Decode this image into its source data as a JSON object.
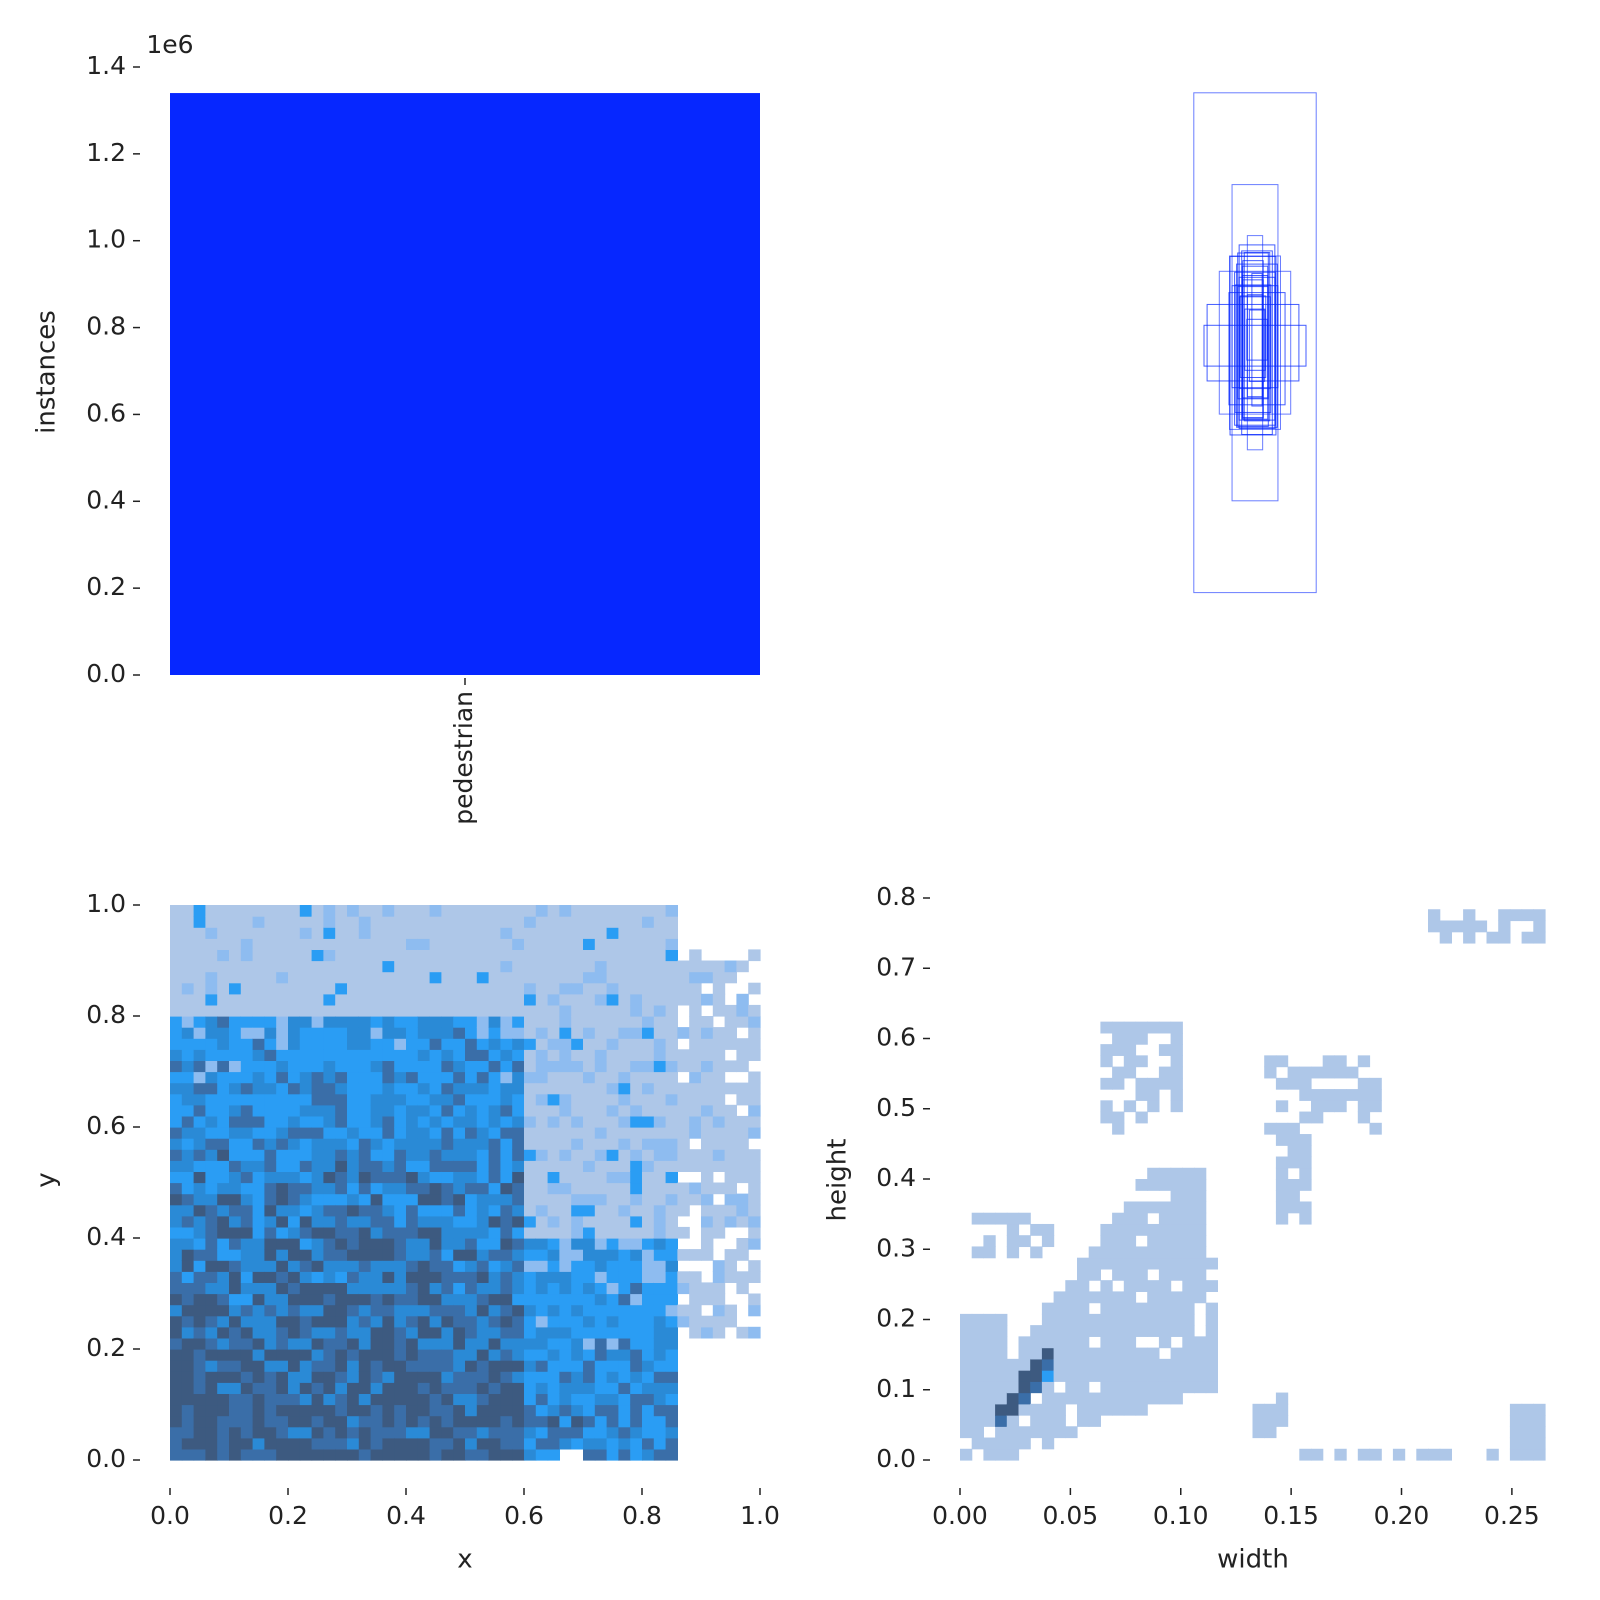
{
  "chart_data": [
    {
      "type": "bar",
      "panel": "top-left",
      "categories": [
        "pedestrian"
      ],
      "values": [
        1340000
      ],
      "ylabel": "instances",
      "xlabel": "",
      "ylim": [
        0,
        1400000
      ],
      "yticks": [
        0,
        200000,
        400000,
        600000,
        800000,
        1000000,
        1200000,
        1400000
      ],
      "ytick_labels": [
        "0.0",
        "0.2",
        "0.4",
        "0.6",
        "0.8",
        "1.0",
        "1.2",
        "1.4"
      ],
      "offset_text": "1e6",
      "bar_color": "#0627ff",
      "grid": false
    },
    {
      "type": "box_overlay",
      "panel": "top-right",
      "description_free": true,
      "center": [
        0.5,
        0.5
      ],
      "boxes_wh": [
        [
          0.24,
          0.98
        ],
        [
          0.09,
          0.62
        ],
        [
          0.14,
          0.28
        ],
        [
          0.1,
          0.34
        ],
        [
          0.03,
          0.42
        ],
        [
          0.07,
          0.36
        ],
        [
          0.06,
          0.34
        ],
        [
          0.05,
          0.3
        ],
        [
          0.08,
          0.32
        ],
        [
          0.04,
          0.27
        ],
        [
          0.05,
          0.24
        ],
        [
          0.02,
          0.26
        ],
        [
          0.06,
          0.22
        ],
        [
          0.03,
          0.2
        ],
        [
          0.07,
          0.28
        ],
        [
          0.05,
          0.16
        ],
        [
          0.04,
          0.12
        ],
        [
          0.06,
          0.36
        ],
        [
          0.09,
          0.35
        ],
        [
          0.08,
          0.3
        ],
        [
          0.05,
          0.33
        ],
        [
          0.04,
          0.31
        ],
        [
          0.06,
          0.18
        ],
        [
          0.03,
          0.14
        ],
        [
          0.07,
          0.25
        ],
        [
          0.09,
          0.2
        ],
        [
          0.04,
          0.08
        ],
        [
          0.18,
          0.15
        ],
        [
          0.2,
          0.08
        ],
        [
          0.11,
          0.22
        ]
      ],
      "box_color": "#0627ff",
      "axes_visible": false
    },
    {
      "type": "heatmap",
      "panel": "bottom-left",
      "xlabel": "x",
      "ylabel": "y",
      "xlim": [
        0,
        1
      ],
      "ylim": [
        0,
        1
      ],
      "xticks": [
        0,
        0.2,
        0.4,
        0.6,
        0.8,
        1.0
      ],
      "xtick_labels": [
        "0.0",
        "0.2",
        "0.4",
        "0.6",
        "0.8",
        "1.0"
      ],
      "yticks": [
        0,
        0.2,
        0.4,
        0.6,
        0.8,
        1.0
      ],
      "ytick_labels": [
        "0.0",
        "0.2",
        "0.4",
        "0.6",
        "0.8",
        "1.0"
      ],
      "bins": 50,
      "colors": [
        "#aec7e8",
        "#8ebcf0",
        "#2a9df4",
        "#2a8ad6",
        "#3a6ea8",
        "#3d5a80"
      ],
      "grid": false
    },
    {
      "type": "heatmap",
      "panel": "bottom-right",
      "xlabel": "width",
      "ylabel": "height",
      "xlim": [
        0,
        0.265
      ],
      "ylim": [
        0,
        0.8
      ],
      "xticks": [
        0,
        0.05,
        0.1,
        0.15,
        0.2,
        0.25
      ],
      "xtick_labels": [
        "0.00",
        "0.05",
        "0.10",
        "0.15",
        "0.20",
        "0.25"
      ],
      "yticks": [
        0,
        0.1,
        0.2,
        0.3,
        0.4,
        0.5,
        0.6,
        0.7,
        0.8
      ],
      "ytick_labels": [
        "0.0",
        "0.1",
        "0.2",
        "0.3",
        "0.4",
        "0.5",
        "0.6",
        "0.7",
        "0.8"
      ],
      "bins": 50,
      "colors": [
        "#aec7e8",
        "#2a9df4",
        "#3a6ea8",
        "#3d5a80"
      ],
      "grid": false
    }
  ]
}
